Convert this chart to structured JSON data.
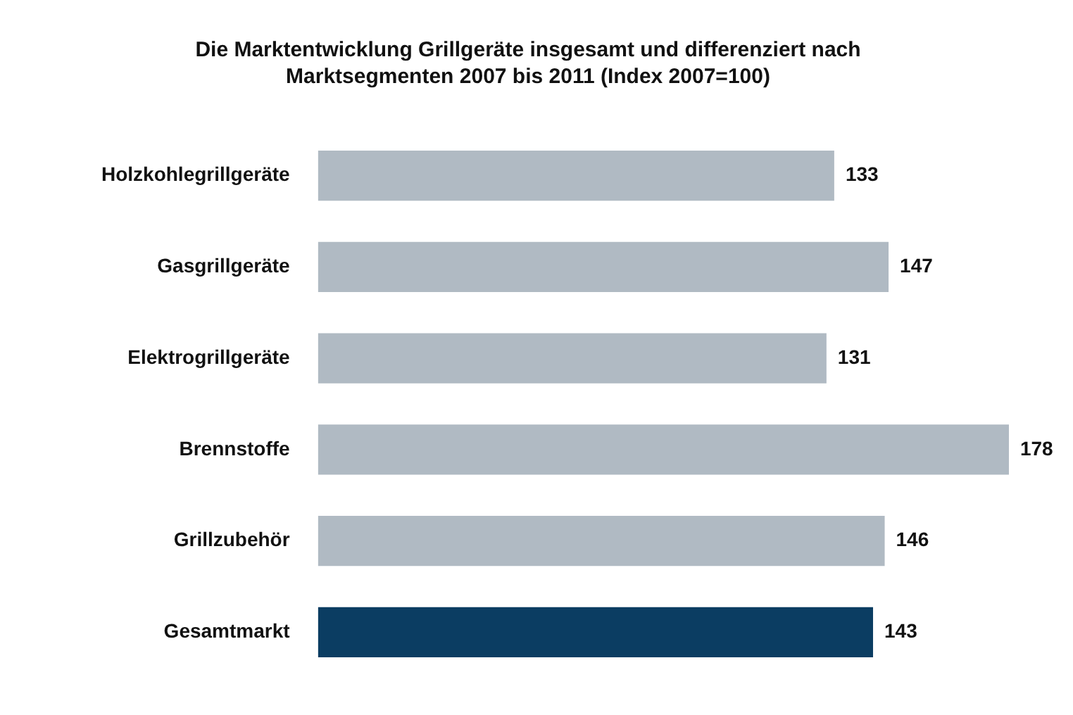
{
  "chart_data": {
    "type": "bar",
    "orientation": "horizontal",
    "title": "Die Marktentwicklung Grillgeräte insgesamt und differenziert nach Marktsegmenten 2007 bis 2011  (Index 2007=100)",
    "categories": [
      "Holzkohlegrillgeräte",
      "Gasgrillgeräte",
      "Elektrogrillgeräte",
      "Brennstoffe",
      "Grillzubehör",
      "Gesamtmarkt"
    ],
    "values": [
      133,
      147,
      131,
      178,
      146,
      143
    ],
    "colors": [
      "#b0bac3",
      "#b0bac3",
      "#b0bac3",
      "#b0bac3",
      "#b0bac3",
      "#0b3d62"
    ],
    "data_labels": true,
    "grid": false,
    "legend": false
  }
}
